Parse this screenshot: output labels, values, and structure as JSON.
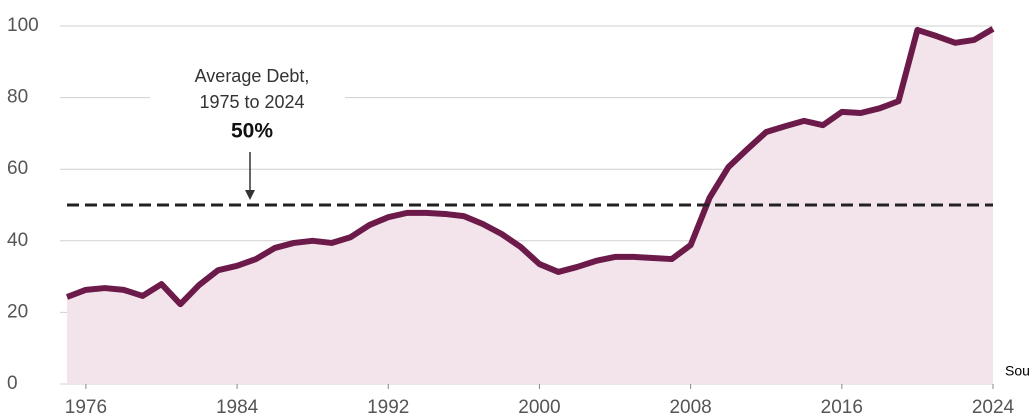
{
  "chart_data": {
    "type": "area",
    "x": [
      1975,
      1976,
      1977,
      1978,
      1979,
      1980,
      1981,
      1982,
      1983,
      1984,
      1985,
      1986,
      1987,
      1988,
      1989,
      1990,
      1991,
      1992,
      1993,
      1994,
      1995,
      1996,
      1997,
      1998,
      1999,
      2000,
      2001,
      2002,
      2003,
      2004,
      2005,
      2006,
      2007,
      2008,
      2009,
      2010,
      2011,
      2012,
      2013,
      2014,
      2015,
      2016,
      2017,
      2018,
      2019,
      2020,
      2021,
      2022,
      2023,
      2024
    ],
    "series": [
      {
        "color": "#6b1a4a",
        "fill": "#f3e4ec",
        "values": [
          24.3,
          26.3,
          26.8,
          26.3,
          24.6,
          27.9,
          22.3,
          27.7,
          31.8,
          33,
          34.9,
          38,
          39.4,
          40,
          39.4,
          41,
          44.4,
          46.6,
          47.8,
          47.8,
          47.5,
          46.9,
          44.7,
          41.9,
          38.3,
          33.5,
          31.3,
          32.7,
          34.4,
          35.5,
          35.5,
          35.2,
          34.9,
          38.8,
          52,
          60.6,
          65.6,
          70.4,
          72,
          73.5,
          72.3,
          76,
          75.7,
          77,
          79,
          98.9,
          97.2,
          95.3,
          96.1,
          99.2
        ]
      }
    ],
    "xlim": [
      1975,
      2024
    ],
    "xticks": [
      1976,
      1984,
      1992,
      2000,
      2008,
      2016,
      2024
    ],
    "ylim": [
      0,
      100
    ],
    "yticks": [
      0,
      20,
      40,
      60,
      80,
      100
    ],
    "grid": true,
    "reference_line": {
      "value": 50,
      "label": "50%",
      "text": [
        "Average Debt,",
        "1975 to 2024"
      ]
    },
    "source_fragment": "Sou"
  }
}
